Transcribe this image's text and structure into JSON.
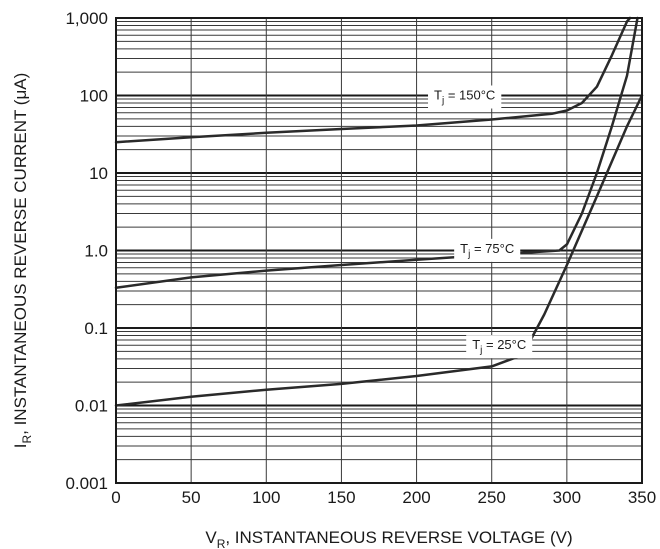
{
  "chart_data": {
    "type": "line",
    "xlabel_main": "V",
    "xlabel_sub": "R",
    "xlabel_rest": ", INSTANTANEOUS REVERSE VOLTAGE (V)",
    "ylabel_main": "I",
    "ylabel_sub": "R",
    "ylabel_rest": ", INSTANTANEOUS REVERSE CURRENT (",
    "ylabel_unit": "μA",
    "ylabel_close": ")",
    "xlim": [
      0,
      350
    ],
    "ylim": [
      0.001,
      1000
    ],
    "y_scale": "log",
    "grid": true,
    "x_ticks": [
      {
        "value": 0,
        "label": "0"
      },
      {
        "value": 50,
        "label": "50"
      },
      {
        "value": 100,
        "label": "100"
      },
      {
        "value": 150,
        "label": "150"
      },
      {
        "value": 200,
        "label": "200"
      },
      {
        "value": 250,
        "label": "250"
      },
      {
        "value": 300,
        "label": "300"
      },
      {
        "value": 350,
        "label": "350"
      }
    ],
    "y_ticks": [
      {
        "value": 1000,
        "label": "1,000"
      },
      {
        "value": 100,
        "label": "100"
      },
      {
        "value": 10,
        "label": "10"
      },
      {
        "value": 1,
        "label": "1.0"
      },
      {
        "value": 0.1,
        "label": "0.1"
      },
      {
        "value": 0.01,
        "label": "0.01"
      },
      {
        "value": 0.001,
        "label": "0.001"
      }
    ],
    "series": [
      {
        "label_main": "T",
        "label_sub": "j",
        "label_rest": " = 150°C",
        "label_anchor": {
          "x": 232,
          "y": 100
        },
        "points": [
          [
            0,
            25
          ],
          [
            50,
            29
          ],
          [
            100,
            33
          ],
          [
            150,
            37
          ],
          [
            200,
            41
          ],
          [
            250,
            49
          ],
          [
            290,
            58
          ],
          [
            300,
            64
          ],
          [
            310,
            80
          ],
          [
            320,
            130
          ],
          [
            330,
            330
          ],
          [
            340,
            900
          ],
          [
            342,
            1000
          ]
        ]
      },
      {
        "label_main": "T",
        "label_sub": "j",
        "label_rest": " = 75°C",
        "label_anchor": {
          "x": 247,
          "y": 1.05
        },
        "points": [
          [
            0,
            0.33
          ],
          [
            50,
            0.45
          ],
          [
            100,
            0.55
          ],
          [
            150,
            0.65
          ],
          [
            200,
            0.76
          ],
          [
            250,
            0.88
          ],
          [
            295,
            1.0
          ],
          [
            300,
            1.2
          ],
          [
            310,
            3.0
          ],
          [
            320,
            10
          ],
          [
            330,
            40
          ],
          [
            340,
            180
          ],
          [
            347,
            1000
          ]
        ]
      },
      {
        "label_main": "T",
        "label_sub": "j",
        "label_rest": " = 25°C",
        "label_anchor": {
          "x": 255,
          "y": 0.06
        },
        "points": [
          [
            0,
            0.01
          ],
          [
            50,
            0.013
          ],
          [
            100,
            0.016
          ],
          [
            150,
            0.019
          ],
          [
            200,
            0.024
          ],
          [
            250,
            0.032
          ],
          [
            268,
            0.043
          ],
          [
            275,
            0.065
          ],
          [
            285,
            0.15
          ],
          [
            300,
            0.65
          ],
          [
            320,
            5
          ],
          [
            340,
            40
          ],
          [
            350,
            100
          ]
        ]
      }
    ]
  }
}
